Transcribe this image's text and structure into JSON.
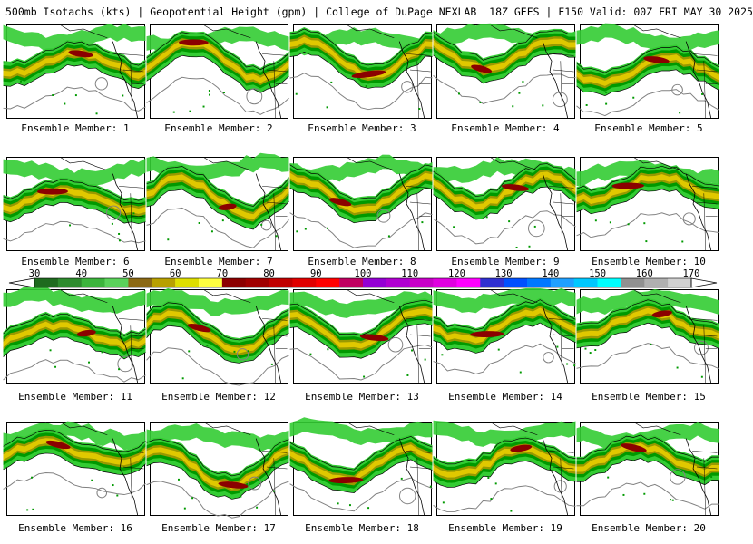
{
  "header": {
    "left": "500mb Isotachs (kts) | Geopotential Height (gpm) | College of DuPage NEXLAB",
    "right": "18Z GEFS | F150 Valid: 00Z FRI MAY 30 2025"
  },
  "panels": [
    {
      "label": "Ensemble Member: 1"
    },
    {
      "label": "Ensemble Member: 2"
    },
    {
      "label": "Ensemble Member: 3"
    },
    {
      "label": "Ensemble Member: 4"
    },
    {
      "label": "Ensemble Member: 5"
    },
    {
      "label": "Ensemble Member: 6"
    },
    {
      "label": "Ensemble Member: 7"
    },
    {
      "label": "Ensemble Member: 8"
    },
    {
      "label": "Ensemble Member: 9"
    },
    {
      "label": "Ensemble Member: 10"
    },
    {
      "label": "Ensemble Member: 11"
    },
    {
      "label": "Ensemble Member: 12"
    },
    {
      "label": "Ensemble Member: 13"
    },
    {
      "label": "Ensemble Member: 14"
    },
    {
      "label": "Ensemble Member: 15"
    },
    {
      "label": "Ensemble Member: 16"
    },
    {
      "label": "Ensemble Member: 17"
    },
    {
      "label": "Ensemble Member: 18"
    },
    {
      "label": "Ensemble Member: 19"
    },
    {
      "label": "Ensemble Member: 20"
    }
  ],
  "colorbar": {
    "ticks": [
      "30",
      "40",
      "50",
      "60",
      "70",
      "80",
      "90",
      "100",
      "110",
      "120",
      "130",
      "140",
      "150",
      "160",
      "170"
    ],
    "colors": [
      "#1f6b1f",
      "#2e8b2e",
      "#3cb43c",
      "#5ad25a",
      "#8b6914",
      "#b8a000",
      "#dede00",
      "#ffff40",
      "#8b0000",
      "#a00000",
      "#c00000",
      "#e00000",
      "#ff0000",
      "#c00060",
      "#9400d3",
      "#b000d0",
      "#c800c8",
      "#e000e0",
      "#ff00ff",
      "#3030d0",
      "#0050ff",
      "#0078ff",
      "#20a0ff",
      "#00c8ff",
      "#00ffff",
      "#909090",
      "#b0b0b0",
      "#d0d0d0"
    ]
  },
  "map_colors": {
    "light_green": "#33cc33",
    "green": "#009900",
    "olive": "#999900",
    "yellow": "#e0c800",
    "dark_red": "#8b0000",
    "contour": "#808080",
    "coast": "#000000"
  }
}
